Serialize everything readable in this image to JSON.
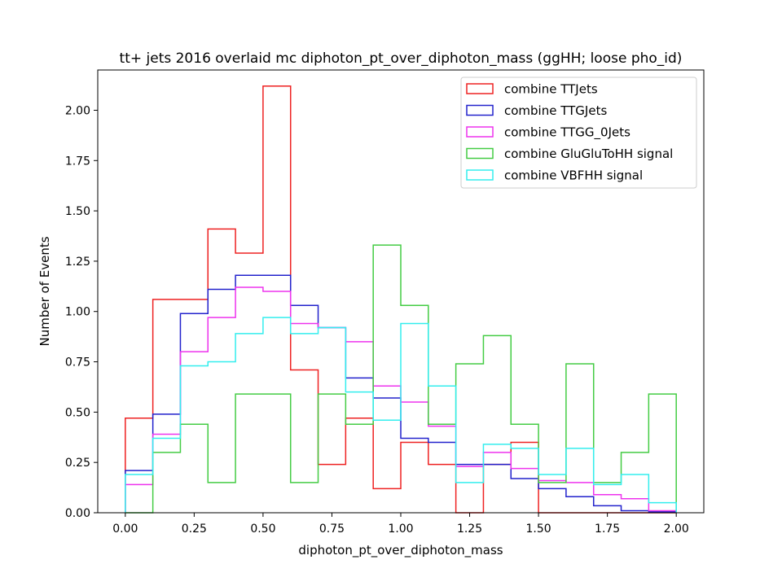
{
  "chart_data": {
    "type": "histogram",
    "title": "tt+ jets 2016 overlaid mc diphoton_pt_over_diphoton_mass (ggHH; loose pho_id)",
    "xlabel": "diphoton_pt_over_diphoton_mass",
    "ylabel": "Number of Events",
    "xlim": [
      -0.1,
      2.1
    ],
    "ylim": [
      0,
      2.2
    ],
    "xticks": [
      "0.00",
      "0.25",
      "0.50",
      "0.75",
      "1.00",
      "1.25",
      "1.50",
      "1.75",
      "2.00"
    ],
    "yticks": [
      "0.00",
      "0.25",
      "0.50",
      "0.75",
      "1.00",
      "1.25",
      "1.50",
      "1.75",
      "2.00"
    ],
    "legend_position": "top-right",
    "grid": false,
    "bin_edges": [
      0.0,
      0.1,
      0.2,
      0.3,
      0.4,
      0.5,
      0.6,
      0.7,
      0.8,
      0.9,
      1.0,
      1.1,
      1.2,
      1.3,
      1.4,
      1.5,
      1.6,
      1.7,
      1.8,
      1.9,
      2.0
    ],
    "series": [
      {
        "name": "combine TTJets",
        "color": "#ee2222",
        "values": [
          0.47,
          1.06,
          1.06,
          1.41,
          1.29,
          2.12,
          0.71,
          0.24,
          0.47,
          0.12,
          0.35,
          0.24,
          0.0,
          0.24,
          0.35,
          0.0,
          0.0,
          0.0,
          0.0,
          0.0
        ]
      },
      {
        "name": "combine TTGJets",
        "color": "#2222cc",
        "values": [
          0.21,
          0.49,
          0.99,
          1.11,
          1.18,
          1.18,
          1.03,
          0.92,
          0.67,
          0.57,
          0.37,
          0.35,
          0.24,
          0.24,
          0.17,
          0.12,
          0.08,
          0.035,
          0.01,
          0.005
        ]
      },
      {
        "name": "combine TTGG_0Jets",
        "color": "#ee33ee",
        "values": [
          0.14,
          0.39,
          0.8,
          0.97,
          1.12,
          1.1,
          0.94,
          0.92,
          0.85,
          0.63,
          0.55,
          0.43,
          0.23,
          0.3,
          0.22,
          0.16,
          0.15,
          0.09,
          0.07,
          0.01
        ]
      },
      {
        "name": "combine GluGluToHH signal",
        "color": "#44cc44",
        "values": [
          0.0,
          0.3,
          0.44,
          0.15,
          0.59,
          0.59,
          0.15,
          0.59,
          0.44,
          1.33,
          1.03,
          0.44,
          0.74,
          0.88,
          0.44,
          0.15,
          0.74,
          0.15,
          0.3,
          0.59
        ]
      },
      {
        "name": "combine VBFHH signal",
        "color": "#33eeee",
        "values": [
          0.19,
          0.37,
          0.73,
          0.75,
          0.89,
          0.97,
          0.89,
          0.92,
          0.6,
          0.46,
          0.94,
          0.63,
          0.15,
          0.34,
          0.32,
          0.19,
          0.32,
          0.14,
          0.19,
          0.05
        ]
      }
    ]
  }
}
